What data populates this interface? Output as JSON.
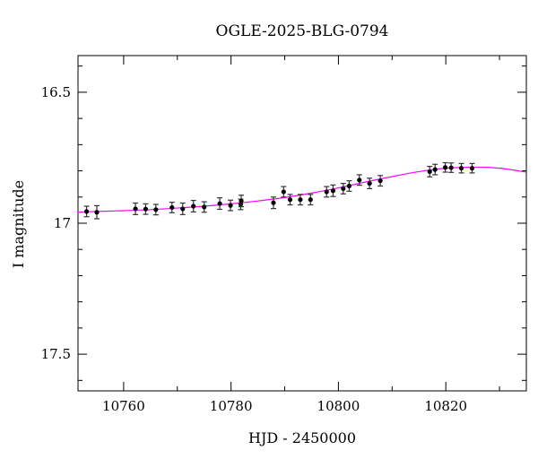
{
  "chart_data": {
    "type": "scatter",
    "title": "OGLE-2025-BLG-0794",
    "xlabel": "HJD - 2450000",
    "ylabel": "I magnitude",
    "xlim": [
      10751.5,
      10835
    ],
    "ylim": [
      17.64,
      16.36
    ],
    "y_inverted": true,
    "x_ticks": [
      10760,
      10780,
      10800,
      10820
    ],
    "x_tick_labels": [
      "10760",
      "10780",
      "10800",
      "10820"
    ],
    "y_ticks": [
      16.5,
      17,
      17.5
    ],
    "y_tick_labels": [
      "16.5",
      "17",
      "17.5"
    ],
    "x_minor_step": 10,
    "y_minor_step": 0.1,
    "grid": false,
    "model_color": "#ff00ff",
    "points": [
      {
        "x": 10753.1,
        "y": 16.955,
        "err": 0.02
      },
      {
        "x": 10755.0,
        "y": 16.958,
        "err": 0.025
      },
      {
        "x": 10762.2,
        "y": 16.945,
        "err": 0.022
      },
      {
        "x": 10764.1,
        "y": 16.946,
        "err": 0.02
      },
      {
        "x": 10766.0,
        "y": 16.948,
        "err": 0.02
      },
      {
        "x": 10769.0,
        "y": 16.94,
        "err": 0.02
      },
      {
        "x": 10771.0,
        "y": 16.945,
        "err": 0.022
      },
      {
        "x": 10773.0,
        "y": 16.935,
        "err": 0.022
      },
      {
        "x": 10775.0,
        "y": 16.938,
        "err": 0.02
      },
      {
        "x": 10777.9,
        "y": 16.925,
        "err": 0.022
      },
      {
        "x": 10779.9,
        "y": 16.932,
        "err": 0.02
      },
      {
        "x": 10781.8,
        "y": 16.928,
        "err": 0.02
      },
      {
        "x": 10781.9,
        "y": 16.915,
        "err": 0.022
      },
      {
        "x": 10787.9,
        "y": 16.922,
        "err": 0.022
      },
      {
        "x": 10789.8,
        "y": 16.88,
        "err": 0.02
      },
      {
        "x": 10791.0,
        "y": 16.91,
        "err": 0.02
      },
      {
        "x": 10792.9,
        "y": 16.91,
        "err": 0.02
      },
      {
        "x": 10794.8,
        "y": 16.91,
        "err": 0.02
      },
      {
        "x": 10797.8,
        "y": 16.88,
        "err": 0.02
      },
      {
        "x": 10799.0,
        "y": 16.876,
        "err": 0.022
      },
      {
        "x": 10800.9,
        "y": 16.868,
        "err": 0.02
      },
      {
        "x": 10802.0,
        "y": 16.858,
        "err": 0.02
      },
      {
        "x": 10803.9,
        "y": 16.835,
        "err": 0.02
      },
      {
        "x": 10805.8,
        "y": 16.848,
        "err": 0.02
      },
      {
        "x": 10807.8,
        "y": 16.838,
        "err": 0.02
      },
      {
        "x": 10817.0,
        "y": 16.803,
        "err": 0.02
      },
      {
        "x": 10818.0,
        "y": 16.795,
        "err": 0.02
      },
      {
        "x": 10819.9,
        "y": 16.787,
        "err": 0.018
      },
      {
        "x": 10821.0,
        "y": 16.788,
        "err": 0.018
      },
      {
        "x": 10822.9,
        "y": 16.79,
        "err": 0.018
      },
      {
        "x": 10824.9,
        "y": 16.79,
        "err": 0.018
      }
    ],
    "model": {
      "x": [
        10751.5,
        10755,
        10760,
        10765,
        10770,
        10775,
        10780,
        10785,
        10790,
        10795,
        10800,
        10805,
        10810,
        10815,
        10820,
        10825,
        10828,
        10830,
        10832,
        10835
      ],
      "y": [
        16.958,
        16.955,
        16.952,
        16.948,
        16.942,
        16.935,
        16.926,
        16.915,
        16.902,
        16.885,
        16.865,
        16.843,
        16.822,
        16.803,
        16.79,
        16.786,
        16.787,
        16.79,
        16.795,
        16.805
      ]
    }
  }
}
